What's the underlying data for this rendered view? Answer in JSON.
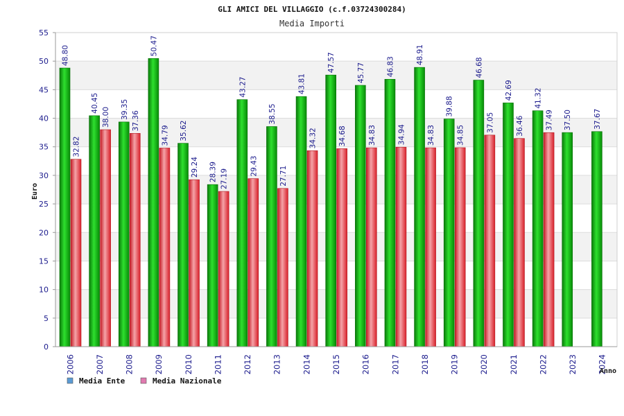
{
  "chart_data": {
    "type": "bar",
    "title": "GLI AMICI DEL VILLAGGIO (c.f.03724300284)",
    "subtitle": "Media Importi",
    "xlabel": "Anno",
    "ylabel": "Euro",
    "ylim": [
      0,
      55
    ],
    "ytick_step": 5,
    "grid": true,
    "legend_position": "bottom-left",
    "categories": [
      "2006",
      "2007",
      "2008",
      "2009",
      "2010",
      "2011",
      "2012",
      "2013",
      "2014",
      "2015",
      "2016",
      "2017",
      "2018",
      "2019",
      "2020",
      "2021",
      "2022",
      "2023",
      "2024"
    ],
    "series": [
      {
        "name": "Media Ente",
        "legend_color": "#5b9bd5",
        "color": "#11b811",
        "values": [
          48.8,
          40.45,
          39.35,
          50.47,
          35.62,
          28.39,
          43.27,
          38.55,
          43.81,
          47.57,
          45.77,
          46.83,
          48.91,
          39.88,
          46.68,
          42.69,
          41.32,
          37.5,
          37.67
        ]
      },
      {
        "name": "Media Nazionale",
        "legend_color": "#e07ab0",
        "color": "#e8303a",
        "values": [
          32.82,
          38.0,
          37.36,
          34.79,
          29.24,
          27.19,
          29.43,
          27.71,
          34.32,
          34.68,
          34.83,
          34.94,
          34.83,
          34.85,
          37.05,
          36.46,
          37.49,
          null,
          null
        ]
      }
    ]
  }
}
